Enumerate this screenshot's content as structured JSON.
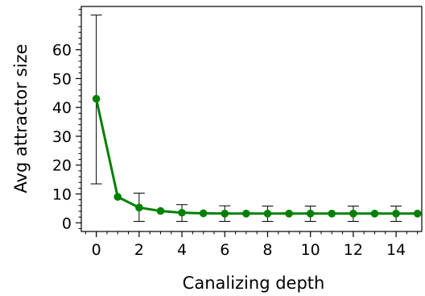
{
  "chart_data": {
    "type": "line",
    "title": "",
    "xlabel": "Canalizing depth",
    "ylabel": "Avg attractor size",
    "xlim": [
      -0.7,
      15.2
    ],
    "ylim": [
      -3,
      75
    ],
    "xticks": [
      0,
      2,
      4,
      6,
      8,
      10,
      12,
      14
    ],
    "yticks": [
      0,
      10,
      20,
      30,
      40,
      50,
      60
    ],
    "grid": false,
    "legend": "none",
    "color": "#008000",
    "series": [
      {
        "x": [
          0,
          1,
          2,
          3,
          4,
          5,
          6,
          7,
          8,
          9,
          10,
          11,
          12,
          13,
          14,
          15
        ],
        "values": [
          43,
          9,
          5.3,
          4.1,
          3.5,
          3.3,
          3.2,
          3.2,
          3.2,
          3.2,
          3.2,
          3.2,
          3.2,
          3.2,
          3.2,
          3.2
        ],
        "error_low": [
          13.5,
          null,
          0.5,
          null,
          0.5,
          null,
          0.5,
          null,
          0.5,
          null,
          0.5,
          null,
          0.5,
          null,
          0.5,
          null
        ],
        "error_high": [
          72,
          null,
          10.3,
          null,
          6.3,
          null,
          5.9,
          null,
          5.8,
          null,
          5.8,
          null,
          5.8,
          null,
          5.8,
          null
        ]
      }
    ]
  }
}
